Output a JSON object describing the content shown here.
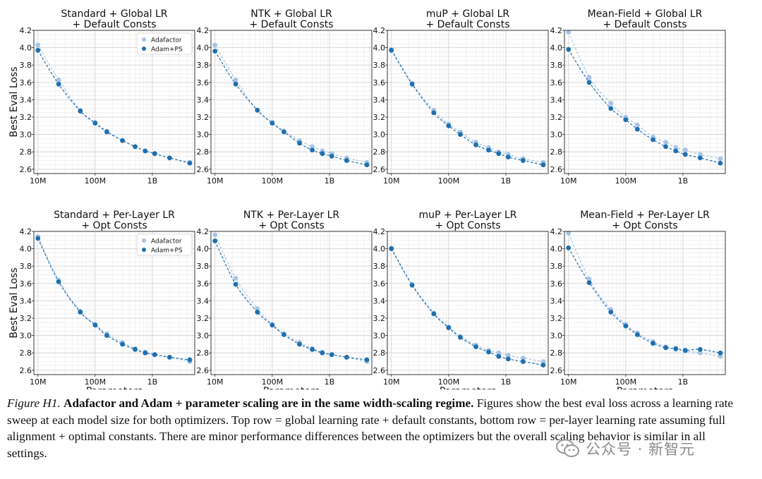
{
  "colors": {
    "adafactor": "#a6c4e8",
    "adam": "#1f6fae",
    "grid": "#d4d4d4"
  },
  "shared": {
    "ylabel": "Best Eval Loss",
    "xlabel": "Parameters",
    "yticks": [
      2.6,
      2.8,
      3.0,
      3.2,
      3.4,
      3.6,
      3.8,
      4.0,
      4.2
    ],
    "ylim": [
      2.55,
      4.2
    ],
    "xticks": [
      {
        "label": "10M",
        "value": 10000000
      },
      {
        "label": "100M",
        "value": 100000000
      },
      {
        "label": "1B",
        "value": 1000000000
      }
    ],
    "xlim": [
      8500000,
      5500000000
    ],
    "xscale": "log",
    "grid": true,
    "legend_placement": "top-right"
  },
  "chart_data": [
    {
      "type": "scatter",
      "title": [
        "Standard + Global LR",
        "+ Default Consts"
      ],
      "x": [
        10000000,
        23000000,
        55000000,
        100000000,
        160000000,
        300000000,
        500000000,
        750000000,
        1100000000,
        2000000000,
        4500000000
      ],
      "series": [
        {
          "name": "Adafactor",
          "values": [
            4.03,
            3.63,
            3.28,
            3.14,
            3.04,
            2.93,
            2.86,
            2.81,
            2.78,
            2.73,
            2.68
          ]
        },
        {
          "name": "Adam+PS",
          "values": [
            3.97,
            3.58,
            3.27,
            3.13,
            3.03,
            2.93,
            2.86,
            2.81,
            2.78,
            2.73,
            2.67
          ]
        }
      ],
      "legend": true,
      "show_ylabel": true,
      "show_xlabel": false
    },
    {
      "type": "scatter",
      "title": [
        "NTK + Global LR",
        "+ Default Consts"
      ],
      "x": [
        10000000,
        23000000,
        55000000,
        100000000,
        160000000,
        300000000,
        500000000,
        750000000,
        1100000000,
        2000000000,
        4500000000
      ],
      "series": [
        {
          "name": "Adafactor",
          "values": [
            4.03,
            3.63,
            3.28,
            3.14,
            3.04,
            2.93,
            2.86,
            2.81,
            2.78,
            2.73,
            2.68
          ]
        },
        {
          "name": "Adam+PS",
          "values": [
            3.96,
            3.58,
            3.28,
            3.13,
            3.03,
            2.9,
            2.82,
            2.78,
            2.75,
            2.7,
            2.65
          ]
        }
      ],
      "legend": false,
      "show_ylabel": false,
      "show_xlabel": false
    },
    {
      "type": "scatter",
      "title": [
        "muP + Global LR",
        "+ Default Consts"
      ],
      "x": [
        10000000,
        23000000,
        55000000,
        100000000,
        160000000,
        300000000,
        500000000,
        750000000,
        1100000000,
        2000000000,
        4500000000
      ],
      "series": [
        {
          "name": "Adafactor",
          "values": [
            3.98,
            3.59,
            3.28,
            3.12,
            3.03,
            2.91,
            2.85,
            2.8,
            2.77,
            2.72,
            2.68
          ]
        },
        {
          "name": "Adam+PS",
          "values": [
            3.97,
            3.58,
            3.25,
            3.1,
            3.0,
            2.88,
            2.82,
            2.78,
            2.74,
            2.7,
            2.65
          ]
        }
      ],
      "legend": false,
      "show_ylabel": false,
      "show_xlabel": false
    },
    {
      "type": "scatter",
      "title": [
        "Mean-Field + Global LR",
        "+ Default Consts"
      ],
      "x": [
        10000000,
        23000000,
        55000000,
        100000000,
        160000000,
        300000000,
        500000000,
        750000000,
        1100000000,
        2000000000,
        4500000000
      ],
      "series": [
        {
          "name": "Adafactor",
          "values": [
            4.18,
            3.66,
            3.36,
            3.2,
            3.11,
            2.97,
            2.91,
            2.85,
            2.82,
            2.77,
            2.72
          ]
        },
        {
          "name": "Adam+PS",
          "values": [
            3.98,
            3.6,
            3.3,
            3.17,
            3.06,
            2.94,
            2.86,
            2.81,
            2.77,
            2.73,
            2.67
          ]
        }
      ],
      "legend": false,
      "show_ylabel": false,
      "show_xlabel": false
    },
    {
      "type": "scatter",
      "title": [
        "Standard + Per-Layer LR",
        "+ Opt Consts"
      ],
      "x": [
        10000000,
        23000000,
        55000000,
        100000000,
        160000000,
        300000000,
        500000000,
        750000000,
        1100000000,
        2000000000,
        4500000000
      ],
      "series": [
        {
          "name": "Adafactor",
          "values": [
            4.14,
            3.64,
            3.28,
            3.13,
            3.02,
            2.92,
            2.85,
            2.81,
            2.78,
            2.75,
            2.7
          ]
        },
        {
          "name": "Adam+PS",
          "values": [
            4.12,
            3.62,
            3.27,
            3.12,
            3.0,
            2.9,
            2.84,
            2.8,
            2.78,
            2.75,
            2.72
          ]
        }
      ],
      "legend": true,
      "show_ylabel": true,
      "show_xlabel": true
    },
    {
      "type": "scatter",
      "title": [
        "NTK + Per-Layer LR",
        "+ Opt Consts"
      ],
      "x": [
        10000000,
        23000000,
        55000000,
        100000000,
        160000000,
        300000000,
        500000000,
        750000000,
        1100000000,
        2000000000,
        4500000000
      ],
      "series": [
        {
          "name": "Adafactor",
          "values": [
            4.16,
            3.66,
            3.31,
            3.13,
            3.02,
            2.92,
            2.85,
            2.81,
            2.78,
            2.75,
            2.7
          ]
        },
        {
          "name": "Adam+PS",
          "values": [
            4.09,
            3.59,
            3.27,
            3.12,
            3.01,
            2.9,
            2.84,
            2.8,
            2.78,
            2.75,
            2.72
          ]
        }
      ],
      "legend": false,
      "show_ylabel": false,
      "show_xlabel": true
    },
    {
      "type": "scatter",
      "title": [
        "muP + Per-Layer LR",
        "+ Opt Consts"
      ],
      "x": [
        10000000,
        23000000,
        55000000,
        100000000,
        160000000,
        300000000,
        500000000,
        750000000,
        1100000000,
        2000000000,
        4500000000
      ],
      "series": [
        {
          "name": "Adafactor",
          "values": [
            4.01,
            3.59,
            3.26,
            3.1,
            2.99,
            2.89,
            2.83,
            2.8,
            2.77,
            2.74,
            2.7
          ]
        },
        {
          "name": "Adam+PS",
          "values": [
            4.0,
            3.58,
            3.25,
            3.09,
            2.98,
            2.87,
            2.81,
            2.76,
            2.73,
            2.7,
            2.66
          ]
        }
      ],
      "legend": false,
      "show_ylabel": false,
      "show_xlabel": true
    },
    {
      "type": "scatter",
      "title": [
        "Mean-Field + Per-Layer LR",
        "+ Opt Consts"
      ],
      "x": [
        10000000,
        23000000,
        55000000,
        100000000,
        160000000,
        300000000,
        500000000,
        750000000,
        1100000000,
        2000000000,
        4500000000
      ],
      "series": [
        {
          "name": "Adafactor",
          "values": [
            4.18,
            3.65,
            3.3,
            3.13,
            3.03,
            2.93,
            2.87,
            2.84,
            2.82,
            2.8,
            2.76
          ]
        },
        {
          "name": "Adam+PS",
          "values": [
            4.01,
            3.61,
            3.27,
            3.11,
            3.01,
            2.91,
            2.86,
            2.85,
            2.83,
            2.84,
            2.8
          ]
        }
      ],
      "legend": false,
      "show_ylabel": false,
      "show_xlabel": true
    }
  ],
  "caption": {
    "label": "Figure H1.",
    "title": "Adafactor and Adam + parameter scaling are in the same width-scaling regime.",
    "body": "Figures show the best eval loss across a learning rate sweep at each model size for both optimizers. Top row = global learning rate + default constants, bottom row = per-layer learning rate assuming full alignment + optimal constants. There are minor performance differences between the optimizers but the overall scaling behavior is similar in all settings."
  },
  "watermark": {
    "text": "公众号 · 新智元",
    "icon": "wechat-icon"
  }
}
